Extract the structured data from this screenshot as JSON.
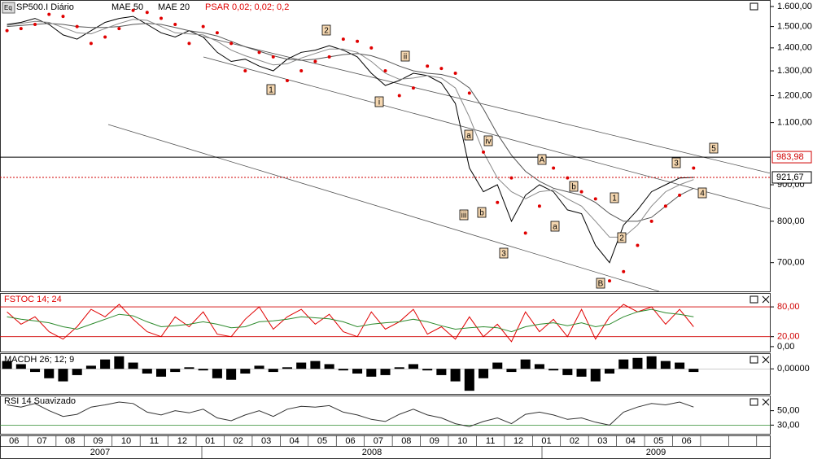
{
  "chart_data": [
    {
      "type": "line",
      "log": true,
      "ylim": [
        638,
        1634
      ],
      "yticks": [
        {
          "value": 1600,
          "label": "1.600,00"
        },
        {
          "value": 1500,
          "label": "1.500,00"
        },
        {
          "value": 1400,
          "label": "1.400,00"
        },
        {
          "value": 1300,
          "label": "1.300,00"
        },
        {
          "value": 1200,
          "label": "1.200,00"
        },
        {
          "value": 1100,
          "label": "1.100,00"
        },
        {
          "value": 900,
          "label": "900,00"
        },
        {
          "value": 800,
          "label": "800,00"
        },
        {
          "value": 700,
          "label": "700,00"
        }
      ],
      "categories": [
        "06",
        null,
        "07",
        null,
        "08",
        null,
        "09",
        null,
        "10",
        null,
        "11",
        null,
        "12",
        null,
        "01",
        null,
        "02",
        null,
        "03",
        null,
        "04",
        null,
        "05",
        null,
        "06",
        null,
        "07",
        null,
        "08",
        null,
        "09",
        null,
        "10",
        null,
        "11",
        null,
        "12",
        null,
        "01",
        null,
        "02",
        null,
        "03",
        null,
        "04",
        null,
        "05",
        null,
        "06",
        null,
        null,
        null,
        null,
        null,
        null
      ],
      "years": [
        "2007",
        "2008",
        "2009"
      ],
      "level": {
        "value": 983.98,
        "label": "983,98"
      },
      "last": {
        "value": 921.67,
        "label": "921,67"
      },
      "annotations": [
        "1",
        "2",
        "i",
        "ii",
        "iii",
        "a",
        "iv",
        "b",
        "3",
        "A",
        "a",
        "b",
        "B",
        "1",
        "2",
        "3",
        "4",
        "5"
      ],
      "series": [
        {
          "name": "SP500.I Diário",
          "color": "#000000",
          "values": [
            1510,
            1520,
            1540,
            1510,
            1460,
            1440,
            1480,
            1520,
            1540,
            1550,
            1510,
            1470,
            1450,
            1480,
            1450,
            1380,
            1340,
            1350,
            1320,
            1300,
            1350,
            1380,
            1390,
            1410,
            1390,
            1360,
            1290,
            1240,
            1260,
            1290,
            1280,
            1250,
            1170,
            950,
            880,
            900,
            800,
            870,
            900,
            880,
            830,
            820,
            740,
            700,
            790,
            830,
            880,
            900,
            920,
            921.67,
            null,
            null,
            null,
            null,
            null
          ]
        },
        {
          "name": "MAE 50",
          "color": "#555555",
          "values": [
            1500,
            1505,
            1510,
            1515,
            1510,
            1500,
            1495,
            1495,
            1500,
            1510,
            1515,
            1510,
            1495,
            1480,
            1470,
            1455,
            1430,
            1405,
            1385,
            1365,
            1350,
            1345,
            1350,
            1360,
            1370,
            1375,
            1365,
            1345,
            1320,
            1300,
            1290,
            1285,
            1270,
            1230,
            1150,
            1060,
            990,
            940,
            910,
            890,
            880,
            870,
            850,
            820,
            800,
            800,
            810,
            840,
            870,
            890,
            null,
            null,
            null,
            null,
            null
          ]
        },
        {
          "name": "MAE 20",
          "color": "#888888",
          "values": [
            1505,
            1515,
            1525,
            1520,
            1495,
            1470,
            1465,
            1490,
            1515,
            1535,
            1530,
            1500,
            1470,
            1465,
            1460,
            1430,
            1390,
            1365,
            1345,
            1325,
            1330,
            1355,
            1375,
            1395,
            1395,
            1380,
            1340,
            1290,
            1265,
            1270,
            1280,
            1270,
            1230,
            1120,
            1000,
            920,
            880,
            860,
            880,
            885,
            860,
            840,
            800,
            760,
            760,
            790,
            840,
            880,
            900,
            915,
            null,
            null,
            null,
            null,
            null
          ]
        },
        {
          "name": "PSAR 0,02; 0,02; 0,2",
          "color": "#e00000",
          "style": "dots",
          "values": [
            1480,
            1490,
            1510,
            1560,
            1550,
            1500,
            1420,
            1450,
            1490,
            1580,
            1570,
            1540,
            1510,
            1420,
            1500,
            1470,
            1420,
            1300,
            1380,
            1360,
            1260,
            1300,
            1340,
            1360,
            1440,
            1430,
            1400,
            1300,
            1200,
            1230,
            1320,
            1310,
            1290,
            1210,
            1000,
            850,
            920,
            770,
            840,
            950,
            920,
            880,
            860,
            660,
            680,
            740,
            800,
            840,
            870,
            950,
            null,
            null,
            null,
            null,
            null
          ]
        }
      ]
    },
    {
      "type": "line",
      "ylim": [
        -10,
        108
      ],
      "yticks": [
        {
          "value": 80,
          "label": "80,00"
        },
        {
          "value": 20,
          "label": "20,00"
        },
        {
          "value": 0,
          "label": "0,00"
        }
      ],
      "series": [
        {
          "name": "FSTOC 14; 24",
          "color": "#e00000",
          "values": [
            70,
            45,
            60,
            30,
            15,
            40,
            75,
            60,
            85,
            55,
            30,
            20,
            60,
            40,
            70,
            25,
            20,
            55,
            80,
            35,
            60,
            75,
            45,
            65,
            30,
            20,
            70,
            35,
            50,
            75,
            25,
            40,
            15,
            60,
            20,
            45,
            10,
            70,
            30,
            55,
            20,
            75,
            15,
            60,
            85,
            70,
            80,
            45,
            75,
            40,
            null,
            null,
            null,
            null,
            null
          ]
        },
        {
          "color": "#2e8b2e",
          "values": [
            60,
            55,
            52,
            48,
            40,
            35,
            45,
            55,
            65,
            62,
            50,
            40,
            42,
            45,
            50,
            45,
            38,
            40,
            50,
            52,
            55,
            60,
            58,
            56,
            50,
            40,
            45,
            48,
            50,
            55,
            50,
            42,
            35,
            38,
            40,
            38,
            30,
            40,
            45,
            48,
            42,
            48,
            40,
            45,
            60,
            70,
            75,
            68,
            65,
            60,
            null,
            null,
            null,
            null,
            null
          ]
        }
      ]
    },
    {
      "type": "bar",
      "ylim": [
        -16,
        10
      ],
      "color": "#000000",
      "yticks": [
        {
          "value": 0,
          "label": "0,00000"
        }
      ],
      "series": [
        {
          "name": "MACDH 26; 12; 9",
          "color": "#000000",
          "values": [
            5,
            3,
            -2,
            -6,
            -8,
            -4,
            2,
            6,
            8,
            4,
            -3,
            -5,
            -2,
            1,
            -1,
            -6,
            -7,
            -3,
            2,
            -2,
            1,
            4,
            5,
            3,
            -1,
            -3,
            -5,
            -4,
            1,
            3,
            -1,
            -4,
            -8,
            -14,
            -6,
            4,
            -2,
            6,
            3,
            -1,
            -4,
            -5,
            -8,
            -3,
            6,
            7,
            8,
            5,
            4,
            -2,
            null,
            null,
            null,
            null,
            null
          ]
        }
      ]
    },
    {
      "type": "line",
      "ylim": [
        18,
        71
      ],
      "yticks": [
        {
          "value": 50,
          "label": "50,00"
        },
        {
          "value": 30,
          "label": "30,00"
        }
      ],
      "series": [
        {
          "name": "RSI 14 Suavizado",
          "color": "#333333",
          "values": [
            58,
            55,
            60,
            50,
            42,
            45,
            55,
            58,
            62,
            60,
            48,
            44,
            50,
            47,
            52,
            40,
            36,
            44,
            50,
            42,
            52,
            56,
            55,
            57,
            48,
            44,
            38,
            35,
            45,
            52,
            44,
            40,
            32,
            28,
            35,
            40,
            32,
            45,
            48,
            44,
            38,
            40,
            34,
            30,
            48,
            55,
            60,
            58,
            62,
            55,
            null,
            null,
            null,
            null,
            null
          ]
        }
      ]
    }
  ]
}
